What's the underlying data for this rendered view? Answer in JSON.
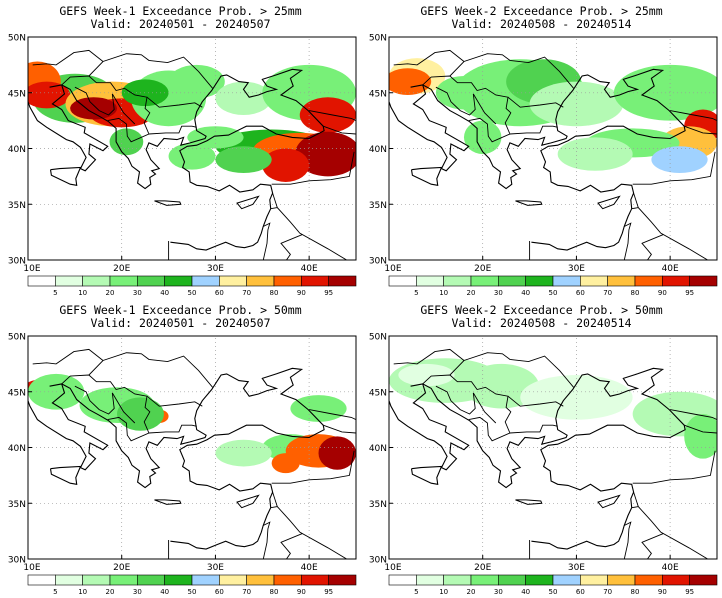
{
  "colors": {
    "bins": [
      "#ffffff",
      "#e1ffe1",
      "#b4fab4",
      "#78f078",
      "#50d250",
      "#1eb41e",
      "#14a014",
      "#a0d2ff",
      "#fff0a0",
      "#ffc03c",
      "#ff6000",
      "#e11400",
      "#a50000",
      "#b43030"
    ],
    "background": "#ffffff",
    "land_line": "#000000",
    "grid_line": "#9a9a9a"
  },
  "colorbar": {
    "labels": [
      "5",
      "10",
      "20",
      "30",
      "40",
      "50",
      "60",
      "70",
      "80",
      "90",
      "95"
    ]
  },
  "axes": {
    "lon_labels": [
      "10E",
      "20E",
      "30E",
      "40E"
    ],
    "lat_labels": [
      "50N",
      "45N",
      "40N",
      "35N",
      "30N"
    ]
  },
  "panels": [
    {
      "id": "w1-25",
      "title_line1": "GEFS Week-1 Exceedance Prob. > 25mm",
      "title_line2": "Valid: 20240501 - 20240507",
      "threshold_mm": 25,
      "week": 1
    },
    {
      "id": "w2-25",
      "title_line1": "GEFS Week-2 Exceedance Prob. > 25mm",
      "title_line2": "Valid: 20240508 - 20240514",
      "threshold_mm": 25,
      "week": 2
    },
    {
      "id": "w1-50",
      "title_line1": "GEFS Week-1 Exceedance Prob. > 50mm",
      "title_line2": "Valid: 20240501 - 20240507",
      "threshold_mm": 50,
      "week": 1
    },
    {
      "id": "w2-50",
      "title_line1": "GEFS Week-2 Exceedance Prob. > 50mm",
      "title_line2": "Valid: 20240508 - 20240514",
      "threshold_mm": 50,
      "week": 2
    }
  ]
}
